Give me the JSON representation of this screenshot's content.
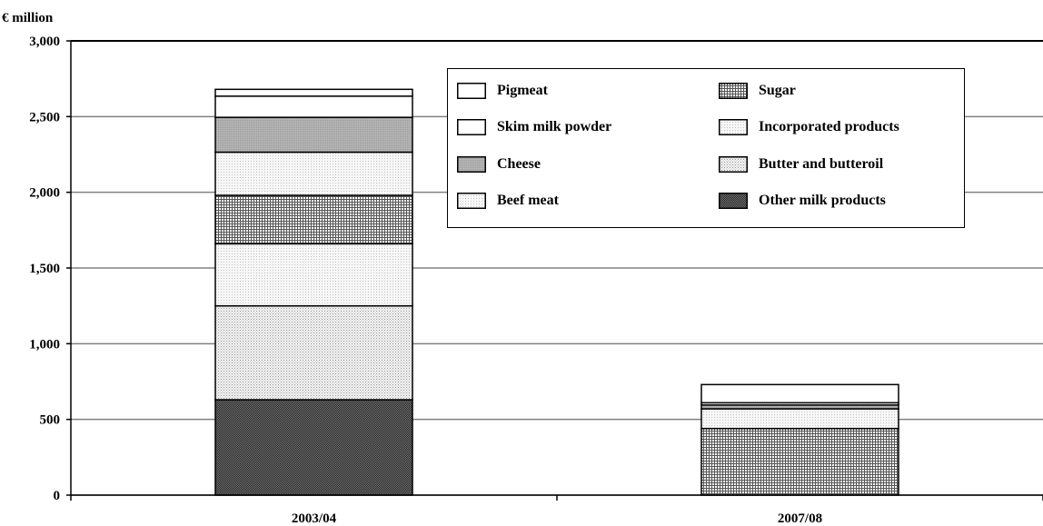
{
  "chart_data": {
    "type": "bar",
    "stacked": true,
    "ylabel": "€ million",
    "categories": [
      "2003/04",
      "2007/08"
    ],
    "ylim": [
      0,
      3000
    ],
    "yticks": [
      "0",
      "500",
      "1,000",
      "1,500",
      "2,000",
      "2,500",
      "3,000"
    ],
    "ytick_values": [
      0,
      500,
      1000,
      1500,
      2000,
      2500,
      3000
    ],
    "grid": true,
    "legend_position": "top-right",
    "series": [
      {
        "name": "Other milk products",
        "values": [
          630,
          0
        ]
      },
      {
        "name": "Butter and butteroil",
        "values": [
          620,
          0
        ]
      },
      {
        "name": "Beef meat",
        "values": [
          410,
          0
        ]
      },
      {
        "name": "Sugar",
        "values": [
          320,
          440
        ]
      },
      {
        "name": "Incorporated products",
        "values": [
          285,
          130
        ]
      },
      {
        "name": "Cheese",
        "values": [
          230,
          25
        ]
      },
      {
        "name": "Skim milk powder",
        "values": [
          140,
          15
        ]
      },
      {
        "name": "Pigmeat",
        "values": [
          45,
          120
        ]
      }
    ],
    "legend": [
      {
        "name": "Pigmeat",
        "style": "white"
      },
      {
        "name": "Sugar",
        "style": "grid"
      },
      {
        "name": "Skim milk powder",
        "style": "white"
      },
      {
        "name": "Incorporated products",
        "style": "light-dots"
      },
      {
        "name": "Cheese",
        "style": "gray"
      },
      {
        "name": "Butter and butteroil",
        "style": "fine-dots"
      },
      {
        "name": "Beef meat",
        "style": "light-dots"
      },
      {
        "name": "Other milk products",
        "style": "dark-grid"
      }
    ]
  }
}
